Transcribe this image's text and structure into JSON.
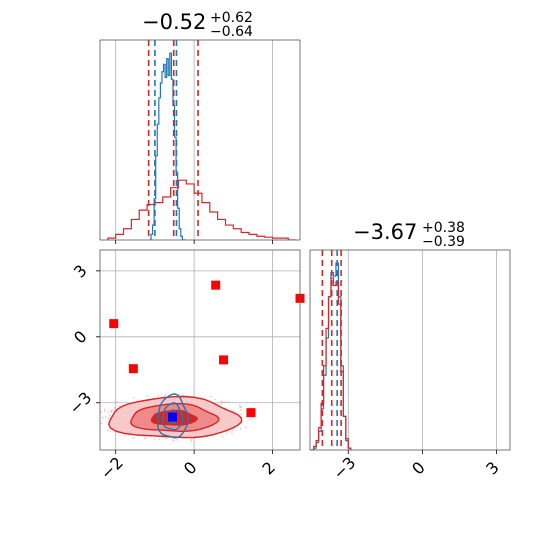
{
  "chart_data": [
    {
      "type": "histogram",
      "panel": "marginal-param-1",
      "title": {
        "main": "−0.52",
        "upper": "+0.62",
        "lower": "−0.64"
      },
      "xlim": [
        -2.4,
        2.7
      ],
      "xticks": [
        -2,
        0,
        2
      ],
      "grid": true,
      "series": [
        {
          "name": "",
          "color": "#1f77b4",
          "bin_edges": [
            -1.14,
            -1.1,
            -1.06,
            -1.02,
            -0.98,
            -0.94,
            -0.9,
            -0.86,
            -0.82,
            -0.78,
            -0.74,
            -0.7,
            -0.66,
            -0.62,
            -0.58,
            -0.54,
            -0.5,
            -0.46,
            -0.42,
            -0.38,
            -0.34,
            -0.3,
            -0.26,
            -0.22
          ],
          "counts": [
            0.0,
            0.03,
            0.08,
            0.22,
            0.45,
            0.62,
            0.76,
            0.84,
            0.9,
            0.94,
            0.87,
            0.97,
            0.88,
            1.0,
            0.86,
            0.72,
            0.55,
            0.36,
            0.17,
            0.06,
            0.02,
            0.0,
            0.0
          ],
          "quantiles": [
            -1.0,
            -0.52,
            -0.45
          ]
        },
        {
          "name": "",
          "color": "#d62728",
          "bin_edges": [
            -2.2,
            -2.0,
            -1.8,
            -1.6,
            -1.4,
            -1.2,
            -1.0,
            -0.8,
            -0.6,
            -0.4,
            -0.2,
            0.0,
            0.2,
            0.4,
            0.6,
            0.8,
            1.0,
            1.2,
            1.4,
            1.6,
            1.8,
            2.0,
            2.2,
            2.4,
            2.6
          ],
          "counts": [
            0.01,
            0.03,
            0.06,
            0.11,
            0.16,
            0.19,
            0.2,
            0.23,
            0.28,
            0.32,
            0.3,
            0.25,
            0.2,
            0.15,
            0.11,
            0.08,
            0.06,
            0.04,
            0.03,
            0.02,
            0.015,
            0.01,
            0.01,
            0.0
          ],
          "quantiles": [
            -1.16,
            -0.52,
            0.1
          ]
        }
      ]
    },
    {
      "type": "histogram",
      "panel": "marginal-param-2",
      "title": {
        "main": "−3.67",
        "upper": "+0.38",
        "lower": "−0.39"
      },
      "xlim": [
        -4.55,
        3.55
      ],
      "xticks": [
        -3,
        0,
        3
      ],
      "grid": true,
      "series": [
        {
          "name": "",
          "color": "#1f77b4",
          "bin_edges": [
            -4.5,
            -4.4,
            -4.3,
            -4.2,
            -4.1,
            -4.0,
            -3.9,
            -3.8,
            -3.7,
            -3.6,
            -3.5,
            -3.4,
            -3.3,
            -3.2,
            -3.1,
            -3.0,
            -2.9
          ],
          "counts": [
            0.0,
            0.01,
            0.04,
            0.1,
            0.22,
            0.4,
            0.6,
            0.82,
            0.95,
            0.93,
            1.0,
            0.82,
            0.45,
            0.18,
            0.05,
            0.01
          ],
          "quantiles": [
            -3.45
          ]
        },
        {
          "name": "",
          "color": "#d62728",
          "bin_edges": [
            -4.5,
            -4.4,
            -4.3,
            -4.2,
            -4.1,
            -4.0,
            -3.9,
            -3.8,
            -3.7,
            -3.6,
            -3.5,
            -3.4,
            -3.3,
            -3.2,
            -3.1,
            -3.0,
            -2.9
          ],
          "counts": [
            0.0,
            0.02,
            0.05,
            0.12,
            0.25,
            0.45,
            0.65,
            0.82,
            0.92,
            0.88,
            0.9,
            0.78,
            0.42,
            0.18,
            0.06,
            0.01
          ],
          "quantiles": [
            -4.05,
            -3.67,
            -3.29
          ]
        }
      ]
    },
    {
      "type": "scatter-contour",
      "panel": "joint-param-1-vs-param-2",
      "xlim": [
        -2.4,
        2.7
      ],
      "ylim": [
        -5.15,
        3.95
      ],
      "xticks": [
        -2,
        0,
        2
      ],
      "yticks": [
        -3,
        0,
        3
      ],
      "grid": true,
      "red_contours": [
        {
          "center": [
            -0.52,
            -3.7
          ],
          "half_width": [
            1.66,
            0.92
          ],
          "fill": "#f8c9c9",
          "stroke": "#d62728"
        },
        {
          "center": [
            -0.52,
            -3.7
          ],
          "half_width": [
            1.1,
            0.62
          ],
          "fill": "#ef8a8a",
          "stroke": "#d62728"
        },
        {
          "center": [
            -0.52,
            -3.7
          ],
          "half_width": [
            0.57,
            0.33
          ],
          "fill": "#d62728",
          "stroke": "#d62728"
        }
      ],
      "blue_contours": [
        {
          "center": [
            -0.55,
            -3.65
          ],
          "half_width": [
            0.38,
            0.98
          ],
          "stroke": "#1f77b4"
        },
        {
          "center": [
            -0.55,
            -3.65
          ],
          "half_width": [
            0.25,
            0.6
          ],
          "stroke": "#1f77b4"
        },
        {
          "center": [
            -0.55,
            -3.65
          ],
          "half_width": [
            0.12,
            0.3
          ],
          "stroke": "#1f77b4"
        }
      ],
      "red_markers": [
        {
          "x": -2.05,
          "y": 0.6
        },
        {
          "x": -1.55,
          "y": -1.45
        },
        {
          "x": 0.55,
          "y": 2.35
        },
        {
          "x": 0.75,
          "y": -1.05
        },
        {
          "x": 1.45,
          "y": -3.45
        },
        {
          "x": 2.7,
          "y": 1.75
        }
      ],
      "blue_marker": {
        "x": -0.55,
        "y": -3.65
      },
      "colors": {
        "red": "#ff0000",
        "blue": "#0000ff"
      }
    }
  ]
}
